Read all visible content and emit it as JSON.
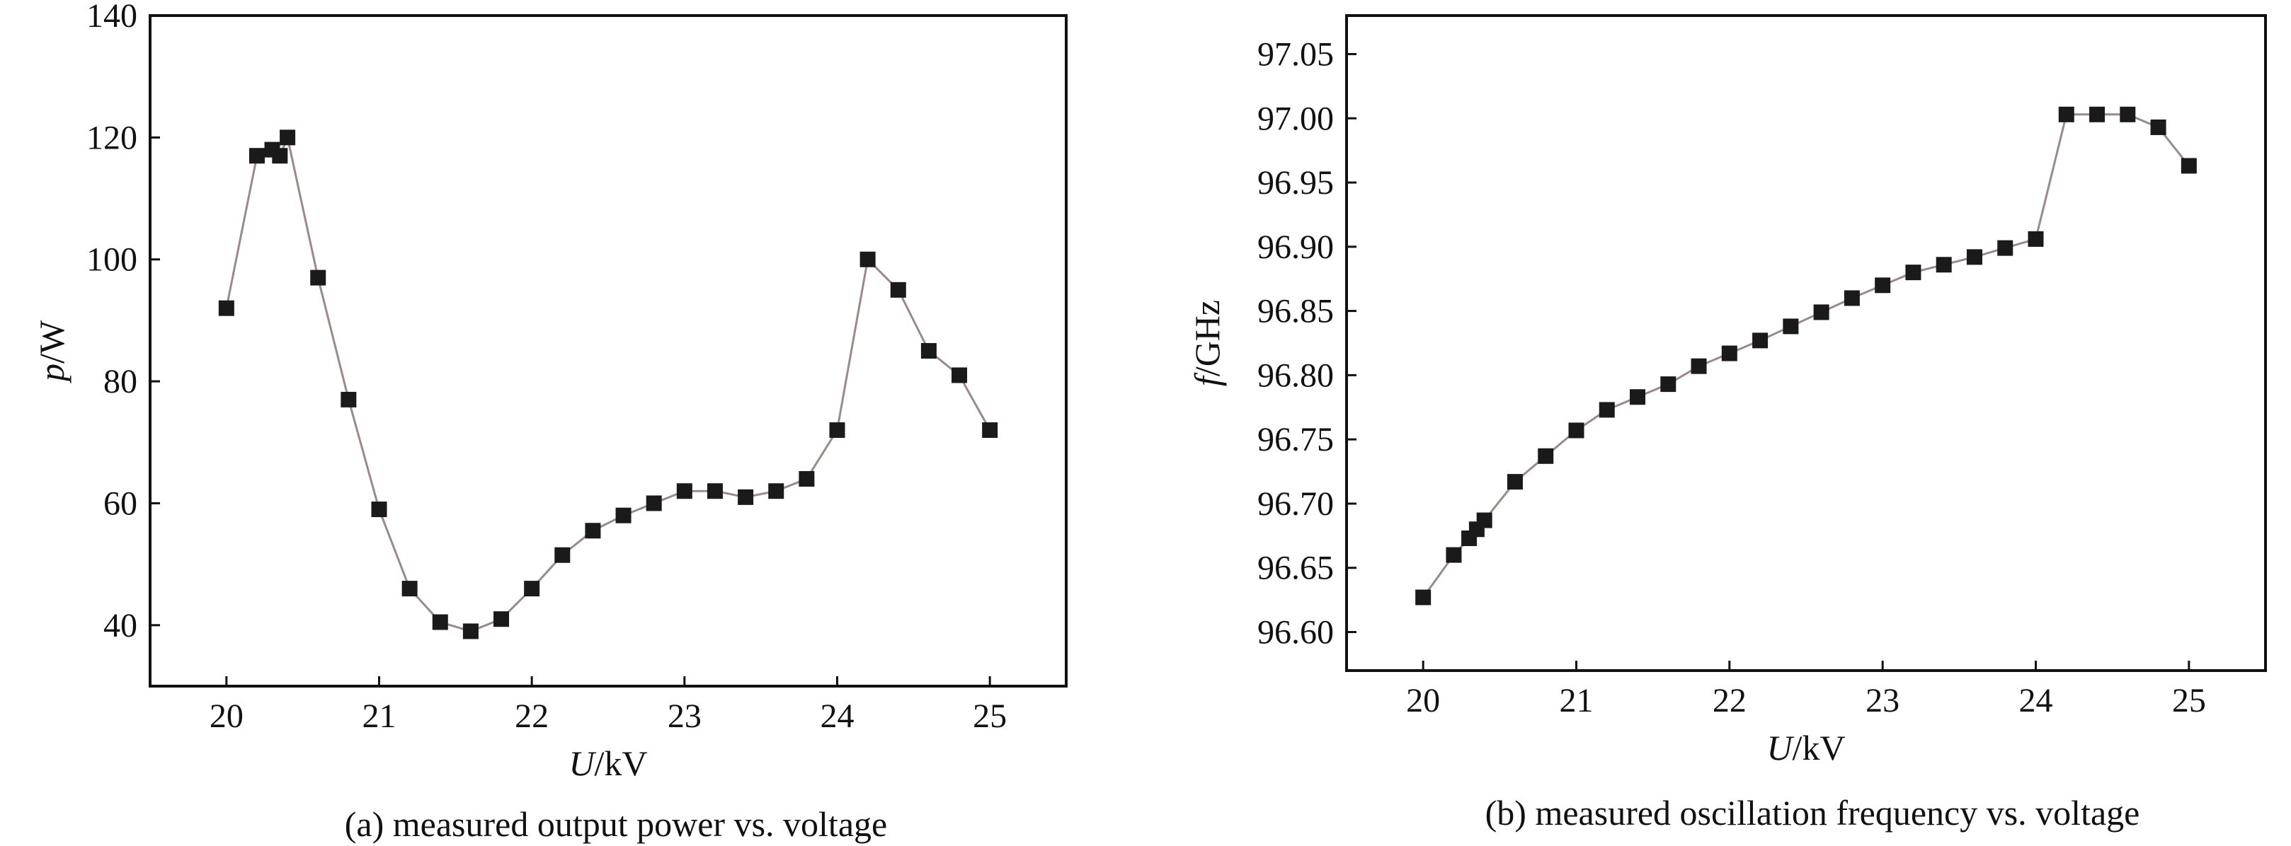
{
  "chart_data": [
    {
      "type": "line",
      "caption": "(a) measured output power vs. voltage",
      "xlabel_symbol": "U",
      "xlabel_unit": "/kV",
      "ylabel_symbol": "p",
      "ylabel_unit": "/W",
      "xlim": [
        19.5,
        25.5
      ],
      "ylim": [
        30,
        140
      ],
      "xticks": [
        20,
        21,
        22,
        23,
        24,
        25
      ],
      "yticks": [
        40,
        60,
        80,
        100,
        120,
        140
      ],
      "ytick_labels": [
        "40",
        "60",
        "80",
        "100",
        "120",
        "140"
      ],
      "marker": "square",
      "line_color": "#9a8a8a",
      "marker_color": "#1a1a1a",
      "x": [
        20.0,
        20.2,
        20.3,
        20.35,
        20.4,
        20.6,
        20.8,
        21.0,
        21.2,
        21.4,
        21.6,
        21.8,
        22.0,
        22.2,
        22.4,
        22.6,
        22.8,
        23.0,
        23.2,
        23.4,
        23.6,
        23.8,
        24.0,
        24.2,
        24.4,
        24.6,
        24.8,
        25.0
      ],
      "y": [
        92,
        117,
        118,
        117,
        120,
        97,
        77,
        59,
        46,
        40.5,
        39,
        41,
        46,
        51.5,
        55.5,
        58,
        60,
        62,
        62,
        61,
        62,
        64,
        72,
        100,
        95,
        85,
        81,
        72
      ]
    },
    {
      "type": "line",
      "caption": "(b) measured oscillation frequency vs. voltage",
      "xlabel_symbol": "U",
      "xlabel_unit": "/kV",
      "ylabel_symbol": "f",
      "ylabel_unit": "/GHz",
      "xlim": [
        19.5,
        25.5
      ],
      "ylim": [
        96.57,
        97.08
      ],
      "xticks": [
        20,
        21,
        22,
        23,
        24,
        25
      ],
      "yticks": [
        96.6,
        96.65,
        96.7,
        96.75,
        96.8,
        96.85,
        96.9,
        96.95,
        97.0,
        97.05
      ],
      "ytick_labels": [
        "96.60",
        "96.65",
        "96.70",
        "96.75",
        "96.80",
        "96.85",
        "96.90",
        "96.95",
        "97.00",
        "97.05"
      ],
      "marker": "square",
      "line_color": "#9a8a8a",
      "marker_color": "#1a1a1a",
      "x": [
        20.0,
        20.2,
        20.3,
        20.35,
        20.4,
        20.6,
        20.8,
        21.0,
        21.2,
        21.4,
        21.6,
        21.8,
        22.0,
        22.2,
        22.4,
        22.6,
        22.8,
        23.0,
        23.2,
        23.4,
        23.6,
        23.8,
        24.0,
        24.2,
        24.4,
        24.6,
        24.8,
        25.0
      ],
      "y": [
        96.627,
        96.66,
        96.673,
        96.68,
        96.687,
        96.717,
        96.737,
        96.757,
        96.773,
        96.783,
        96.793,
        96.807,
        96.817,
        96.827,
        96.838,
        96.849,
        96.86,
        96.87,
        96.88,
        96.886,
        96.892,
        96.899,
        96.906,
        97.003,
        97.003,
        97.003,
        96.993,
        96.963
      ]
    }
  ]
}
